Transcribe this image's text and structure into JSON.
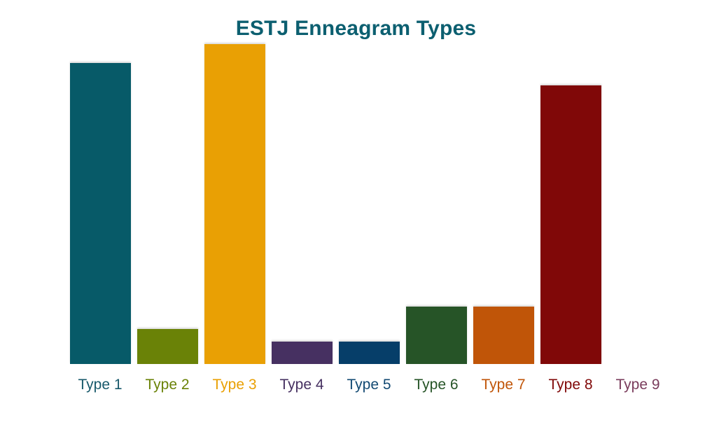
{
  "chart_data": {
    "type": "bar",
    "title": "ESTJ Enneagram Types",
    "categories": [
      "Type 1",
      "Type 2",
      "Type 3",
      "Type 4",
      "Type 5",
      "Type 6",
      "Type 7",
      "Type 8",
      "Type 9"
    ],
    "values": [
      94,
      11,
      100,
      7,
      7,
      18,
      18,
      87,
      0
    ],
    "bar_colors": [
      "#075a68",
      "#6a8207",
      "#e9a004",
      "#463061",
      "#063e69",
      "#265427",
      "#c05508",
      "#800808",
      "#7a3c5c"
    ],
    "label_colors": [
      "#18596b",
      "#6a8207",
      "#e9a004",
      "#463061",
      "#134a73",
      "#265427",
      "#c05508",
      "#800808",
      "#7a3c5c"
    ],
    "xlabel": "",
    "ylabel": "",
    "ylim": [
      0,
      100
    ],
    "grid": false,
    "legend": false,
    "axes_visible": false,
    "title_color": "#0c5f70"
  }
}
